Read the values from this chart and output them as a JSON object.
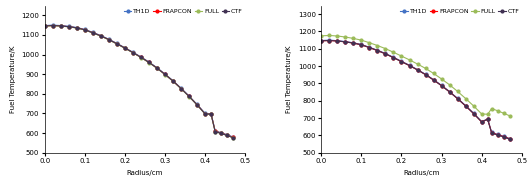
{
  "left": {
    "ylabel": "Fuel Temperature/K",
    "xlabel": "Radius/cm",
    "ylim": [
      500,
      1250
    ],
    "xlim": [
      0,
      0.5
    ],
    "yticks": [
      500,
      600,
      700,
      800,
      900,
      1000,
      1100,
      1200
    ],
    "xticks": [
      0.0,
      0.1,
      0.2,
      0.3,
      0.4,
      0.5
    ],
    "series": {
      "TH1D": {
        "color": "#4472C4",
        "marker": "o",
        "markersize": 2.0,
        "linewidth": 0.8,
        "x": [
          0.0,
          0.02,
          0.04,
          0.06,
          0.08,
          0.1,
          0.12,
          0.14,
          0.16,
          0.18,
          0.2,
          0.22,
          0.24,
          0.26,
          0.28,
          0.3,
          0.32,
          0.34,
          0.36,
          0.38,
          0.4,
          0.415,
          0.425,
          0.44,
          0.455,
          0.47
        ],
        "y": [
          1148,
          1150,
          1148,
          1144,
          1138,
          1128,
          1113,
          1097,
          1078,
          1057,
          1035,
          1012,
          988,
          962,
          933,
          901,
          867,
          829,
          789,
          746,
          700,
          698,
          612,
          602,
          592,
          580
        ]
      },
      "FRAPCON": {
        "color": "#FF0000",
        "marker": "o",
        "markersize": 2.0,
        "linewidth": 0.8,
        "x": [
          0.0,
          0.02,
          0.04,
          0.06,
          0.08,
          0.1,
          0.12,
          0.14,
          0.16,
          0.18,
          0.2,
          0.22,
          0.24,
          0.26,
          0.28,
          0.3,
          0.32,
          0.34,
          0.36,
          0.38,
          0.4,
          0.415,
          0.425,
          0.44,
          0.455,
          0.47
        ],
        "y": [
          1146,
          1148,
          1146,
          1142,
          1136,
          1126,
          1111,
          1095,
          1076,
          1055,
          1033,
          1010,
          986,
          960,
          931,
          899,
          865,
          827,
          787,
          744,
          698,
          696,
          610,
          600,
          590,
          578
        ]
      },
      "FULL": {
        "color": "#9BBB59",
        "marker": "o",
        "markersize": 2.0,
        "linewidth": 0.8,
        "x": [
          0.0,
          0.02,
          0.04,
          0.06,
          0.08,
          0.1,
          0.12,
          0.14,
          0.16,
          0.18,
          0.2,
          0.22,
          0.24,
          0.26,
          0.28,
          0.3,
          0.32,
          0.34,
          0.36,
          0.38,
          0.4,
          0.415,
          0.425,
          0.44,
          0.455,
          0.47
        ],
        "y": [
          1145,
          1147,
          1145,
          1141,
          1135,
          1125,
          1110,
          1094,
          1075,
          1054,
          1032,
          1009,
          985,
          959,
          930,
          898,
          864,
          826,
          786,
          743,
          697,
          695,
          608,
          598,
          588,
          576
        ]
      },
      "CTF": {
        "color": "#403152",
        "marker": "o",
        "markersize": 2.0,
        "linewidth": 0.8,
        "x": [
          0.0,
          0.02,
          0.04,
          0.06,
          0.08,
          0.1,
          0.12,
          0.14,
          0.16,
          0.18,
          0.2,
          0.22,
          0.24,
          0.26,
          0.28,
          0.3,
          0.32,
          0.34,
          0.36,
          0.38,
          0.4,
          0.415,
          0.425,
          0.44,
          0.455,
          0.47
        ],
        "y": [
          1146,
          1148,
          1146,
          1142,
          1136,
          1126,
          1111,
          1095,
          1076,
          1055,
          1033,
          1010,
          986,
          960,
          931,
          899,
          865,
          827,
          787,
          744,
          698,
          696,
          608,
          598,
          588,
          576
        ]
      }
    }
  },
  "right": {
    "ylabel": "Fuel Temperature/K",
    "xlabel": "Radius/cm",
    "ylim": [
      500,
      1350
    ],
    "xlim": [
      0,
      0.5
    ],
    "yticks": [
      500,
      600,
      700,
      800,
      900,
      1000,
      1100,
      1200,
      1300
    ],
    "xticks": [
      0.0,
      0.1,
      0.2,
      0.3,
      0.4,
      0.5
    ],
    "series": {
      "TH1D": {
        "color": "#4472C4",
        "marker": "o",
        "markersize": 2.0,
        "linewidth": 0.8,
        "x": [
          0.0,
          0.02,
          0.04,
          0.06,
          0.08,
          0.1,
          0.12,
          0.14,
          0.16,
          0.18,
          0.2,
          0.22,
          0.24,
          0.26,
          0.28,
          0.3,
          0.32,
          0.34,
          0.36,
          0.38,
          0.4,
          0.415,
          0.425,
          0.44,
          0.455,
          0.47
        ],
        "y": [
          1148,
          1150,
          1147,
          1142,
          1135,
          1125,
          1109,
          1092,
          1073,
          1051,
          1028,
          1005,
          980,
          953,
          922,
          889,
          853,
          814,
          772,
          728,
          680,
          695,
          617,
          606,
          595,
          582
        ]
      },
      "FRAPCON": {
        "color": "#FF0000",
        "marker": "o",
        "markersize": 2.0,
        "linewidth": 0.8,
        "x": [
          0.0,
          0.02,
          0.04,
          0.06,
          0.08,
          0.1,
          0.12,
          0.14,
          0.16,
          0.18,
          0.2,
          0.22,
          0.24,
          0.26,
          0.28,
          0.3,
          0.32,
          0.34,
          0.36,
          0.38,
          0.4,
          0.415,
          0.425,
          0.44,
          0.455,
          0.47
        ],
        "y": [
          1146,
          1148,
          1145,
          1140,
          1133,
          1123,
          1107,
          1090,
          1071,
          1049,
          1026,
          1003,
          978,
          951,
          920,
          887,
          851,
          812,
          770,
          726,
          678,
          693,
          615,
          604,
          593,
          580
        ]
      },
      "FULL": {
        "color": "#9BBB59",
        "marker": "o",
        "markersize": 2.0,
        "linewidth": 0.8,
        "x": [
          0.0,
          0.02,
          0.04,
          0.06,
          0.08,
          0.1,
          0.12,
          0.14,
          0.16,
          0.18,
          0.2,
          0.22,
          0.24,
          0.26,
          0.28,
          0.3,
          0.32,
          0.34,
          0.36,
          0.38,
          0.4,
          0.415,
          0.425,
          0.44,
          0.455,
          0.47
        ],
        "y": [
          1175,
          1177,
          1174,
          1168,
          1160,
          1150,
          1135,
          1119,
          1101,
          1080,
          1058,
          1036,
          1012,
          987,
          958,
          926,
          892,
          854,
          813,
          770,
          724,
          722,
          755,
          742,
          728,
          713
        ]
      },
      "CTF": {
        "color": "#403152",
        "marker": "o",
        "markersize": 2.0,
        "linewidth": 0.8,
        "x": [
          0.0,
          0.02,
          0.04,
          0.06,
          0.08,
          0.1,
          0.12,
          0.14,
          0.16,
          0.18,
          0.2,
          0.22,
          0.24,
          0.26,
          0.28,
          0.3,
          0.32,
          0.34,
          0.36,
          0.38,
          0.4,
          0.415,
          0.425,
          0.44,
          0.455,
          0.47
        ],
        "y": [
          1146,
          1148,
          1145,
          1140,
          1133,
          1123,
          1107,
          1090,
          1071,
          1049,
          1026,
          1003,
          978,
          951,
          920,
          887,
          851,
          812,
          770,
          726,
          678,
          693,
          613,
          602,
          591,
          578
        ]
      }
    }
  },
  "legend_order": [
    "TH1D",
    "FRAPCON",
    "FULL",
    "CTF"
  ],
  "background_color": "#ffffff",
  "font_size": 5.0,
  "label_fontsize": 5.0
}
